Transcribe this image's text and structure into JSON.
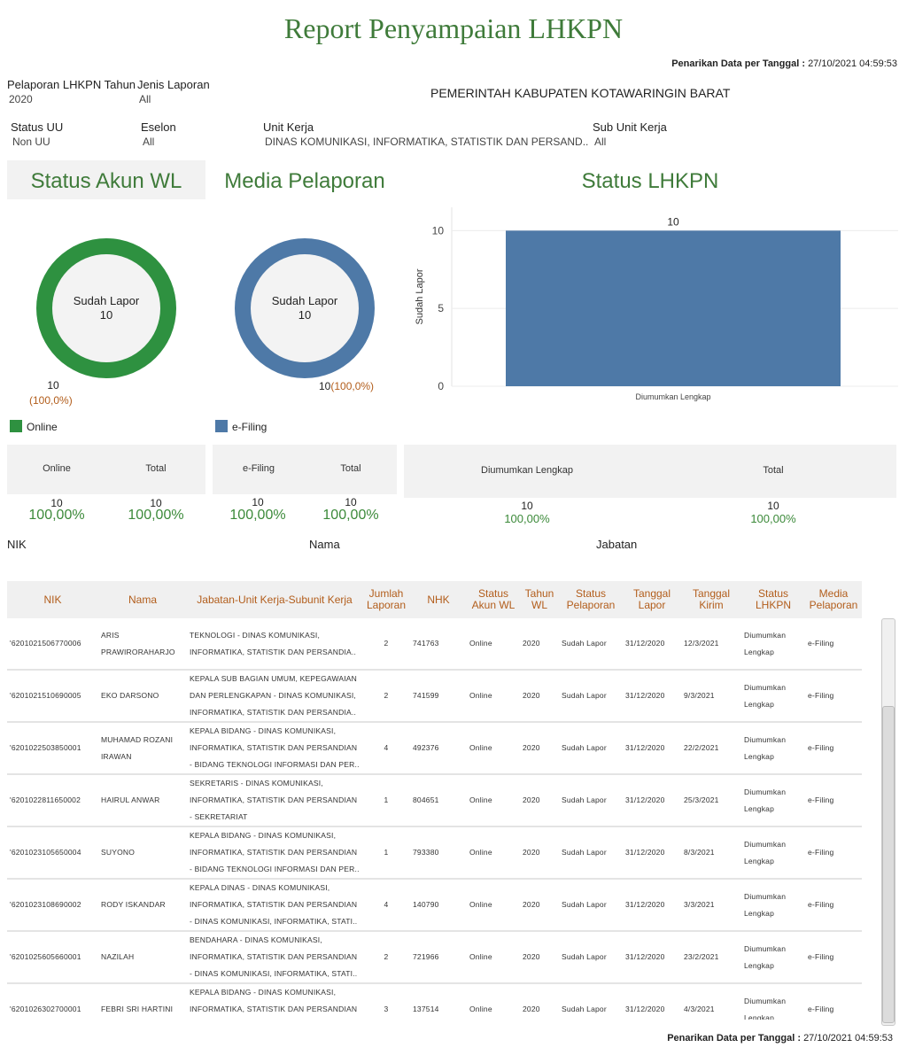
{
  "header": {
    "title": "Report Penyampaian LHKPN",
    "as_of_label": "Penarikan Data per Tanggal :",
    "as_of_value": "27/10/2021 04:59:53",
    "instansi": "PEMERINTAH KABUPATEN KOTAWARINGIN BARAT"
  },
  "filters": {
    "tahun": {
      "label": "Pelaporan LHKPN Tahun",
      "value": "2020"
    },
    "jenis": {
      "label": "Jenis Laporan",
      "value": "All"
    },
    "status_uu": {
      "label": "Status UU",
      "value": "Non UU"
    },
    "eselon": {
      "label": "Eselon",
      "value": "All"
    },
    "unit_kerja": {
      "label": "Unit Kerja",
      "value": "DINAS KOMUNIKASI, INFORMATIKA, STATISTIK DAN PERSAND.."
    },
    "sub_unit": {
      "label": "Sub Unit Kerja",
      "value": "All"
    }
  },
  "status_akun": {
    "title": "Status Akun WL",
    "center_label": "Sudah Lapor",
    "center_value": "10",
    "slice_count": "10",
    "slice_pct": "(100,0%)",
    "legend": "Online",
    "color": "#2e9140",
    "kpi": {
      "col1": "Online",
      "col2": "Total",
      "n1": "10",
      "p1": "100,00%",
      "n2": "10",
      "p2": "100,00%"
    }
  },
  "media": {
    "title": "Media Pelaporan",
    "center_label": "Sudah Lapor",
    "center_value": "10",
    "slice_count": "10",
    "slice_pct": "(100,0%)",
    "legend": "e-Filing",
    "color": "#4e79a7",
    "kpi": {
      "col1": "e-Filing",
      "col2": "Total",
      "n1": "10",
      "p1": "100,00%",
      "n2": "10",
      "p2": "100,00%"
    }
  },
  "status_lhkpn": {
    "title": "Status LHKPN",
    "kpi": {
      "col1": "Diumumkan Lengkap",
      "col2": "Total",
      "n1": "10",
      "p1": "100,00%",
      "n2": "10",
      "p2": "100,00%"
    }
  },
  "chart_data": {
    "type": "bar",
    "categories": [
      "Diumumkan Lengkap"
    ],
    "values": [
      10
    ],
    "data_labels": [
      "10"
    ],
    "ylabel": "Sudah Lapor",
    "xlabel": "",
    "yticks": [
      "0",
      "5",
      "10"
    ],
    "ylim": [
      0,
      11.5
    ],
    "grid": true,
    "color": "#4e79a7"
  },
  "column_labels": {
    "nik": "NIK",
    "nama": "Nama",
    "jabatan": "Jabatan"
  },
  "table": {
    "headers": [
      "NIK",
      "Nama",
      "Jabatan-Unit Kerja-Subunit Kerja",
      "Jumlah Laporan",
      "NHK",
      "Status Akun WL",
      "Tahun WL",
      "Status Pelaporan",
      "Tanggal Lapor",
      "Tanggal Kirim",
      "Status LHKPN",
      "Media Pelaporan"
    ],
    "rows": [
      {
        "nik": "'6201021506770006",
        "nama": "ARIS PRAWIRORAHARJO",
        "jabatan": "TEKNOLOGI - DINAS KOMUNIKASI, INFORMATIKA, STATISTIK DAN PERSANDIA..",
        "jumlah": "2",
        "nhk": "741763",
        "akun": "Online",
        "tahun": "2020",
        "pelaporan": "Sudah Lapor",
        "tgl_lapor": "31/12/2020",
        "tgl_kirim": "12/3/2021",
        "lhkpn": "Diumumkan Lengkap",
        "media": "e-Filing"
      },
      {
        "nik": "'6201021510690005",
        "nama": "EKO DARSONO",
        "jabatan": "KEPALA SUB BAGIAN UMUM, KEPEGAWAIAN DAN PERLENGKAPAN - DINAS KOMUNIKASI, INFORMATIKA, STATISTIK DAN PERSANDIA..",
        "jumlah": "2",
        "nhk": "741599",
        "akun": "Online",
        "tahun": "2020",
        "pelaporan": "Sudah Lapor",
        "tgl_lapor": "31/12/2020",
        "tgl_kirim": "9/3/2021",
        "lhkpn": "Diumumkan Lengkap",
        "media": "e-Filing"
      },
      {
        "nik": "'6201022503850001",
        "nama": "MUHAMAD ROZANI IRAWAN",
        "jabatan": "KEPALA BIDANG - DINAS KOMUNIKASI, INFORMATIKA, STATISTIK DAN PERSANDIAN - BIDANG TEKNOLOGI INFORMASI DAN PER..",
        "jumlah": "4",
        "nhk": "492376",
        "akun": "Online",
        "tahun": "2020",
        "pelaporan": "Sudah Lapor",
        "tgl_lapor": "31/12/2020",
        "tgl_kirim": "22/2/2021",
        "lhkpn": "Diumumkan Lengkap",
        "media": "e-Filing"
      },
      {
        "nik": "'6201022811650002",
        "nama": "HAIRUL ANWAR",
        "jabatan": "SEKRETARIS - DINAS KOMUNIKASI, INFORMATIKA, STATISTIK DAN PERSANDIAN - SEKRETARIAT",
        "jumlah": "1",
        "nhk": "804651",
        "akun": "Online",
        "tahun": "2020",
        "pelaporan": "Sudah Lapor",
        "tgl_lapor": "31/12/2020",
        "tgl_kirim": "25/3/2021",
        "lhkpn": "Diumumkan Lengkap",
        "media": "e-Filing"
      },
      {
        "nik": "'6201023105650004",
        "nama": "SUYONO",
        "jabatan": "KEPALA BIDANG - DINAS KOMUNIKASI, INFORMATIKA, STATISTIK DAN PERSANDIAN - BIDANG TEKNOLOGI INFORMASI DAN PER..",
        "jumlah": "1",
        "nhk": "793380",
        "akun": "Online",
        "tahun": "2020",
        "pelaporan": "Sudah Lapor",
        "tgl_lapor": "31/12/2020",
        "tgl_kirim": "8/3/2021",
        "lhkpn": "Diumumkan Lengkap",
        "media": "e-Filing"
      },
      {
        "nik": "'6201023108690002",
        "nama": "RODY ISKANDAR",
        "jabatan": "KEPALA DINAS - DINAS KOMUNIKASI, INFORMATIKA, STATISTIK DAN PERSANDIAN - DINAS KOMUNIKASI, INFORMATIKA, STATI..",
        "jumlah": "4",
        "nhk": "140790",
        "akun": "Online",
        "tahun": "2020",
        "pelaporan": "Sudah Lapor",
        "tgl_lapor": "31/12/2020",
        "tgl_kirim": "3/3/2021",
        "lhkpn": "Diumumkan Lengkap",
        "media": "e-Filing"
      },
      {
        "nik": "'6201025605660001",
        "nama": "NAZILAH",
        "jabatan": "BENDAHARA - DINAS KOMUNIKASI, INFORMATIKA, STATISTIK DAN PERSANDIAN - DINAS KOMUNIKASI, INFORMATIKA, STATI..",
        "jumlah": "2",
        "nhk": "721966",
        "akun": "Online",
        "tahun": "2020",
        "pelaporan": "Sudah Lapor",
        "tgl_lapor": "31/12/2020",
        "tgl_kirim": "23/2/2021",
        "lhkpn": "Diumumkan Lengkap",
        "media": "e-Filing"
      },
      {
        "nik": "'6201026302700001",
        "nama": "FEBRI SRI HARTINI",
        "jabatan": "KEPALA BIDANG - DINAS KOMUNIKASI, INFORMATIKA, STATISTIK DAN PERSANDIAN - BIDANG PENGELOLAAN INFORMASI PUBLIK",
        "jumlah": "3",
        "nhk": "137514",
        "akun": "Online",
        "tahun": "2020",
        "pelaporan": "Sudah Lapor",
        "tgl_lapor": "31/12/2020",
        "tgl_kirim": "4/3/2021",
        "lhkpn": "Diumumkan Lengkap",
        "media": "e-Filing"
      }
    ]
  }
}
